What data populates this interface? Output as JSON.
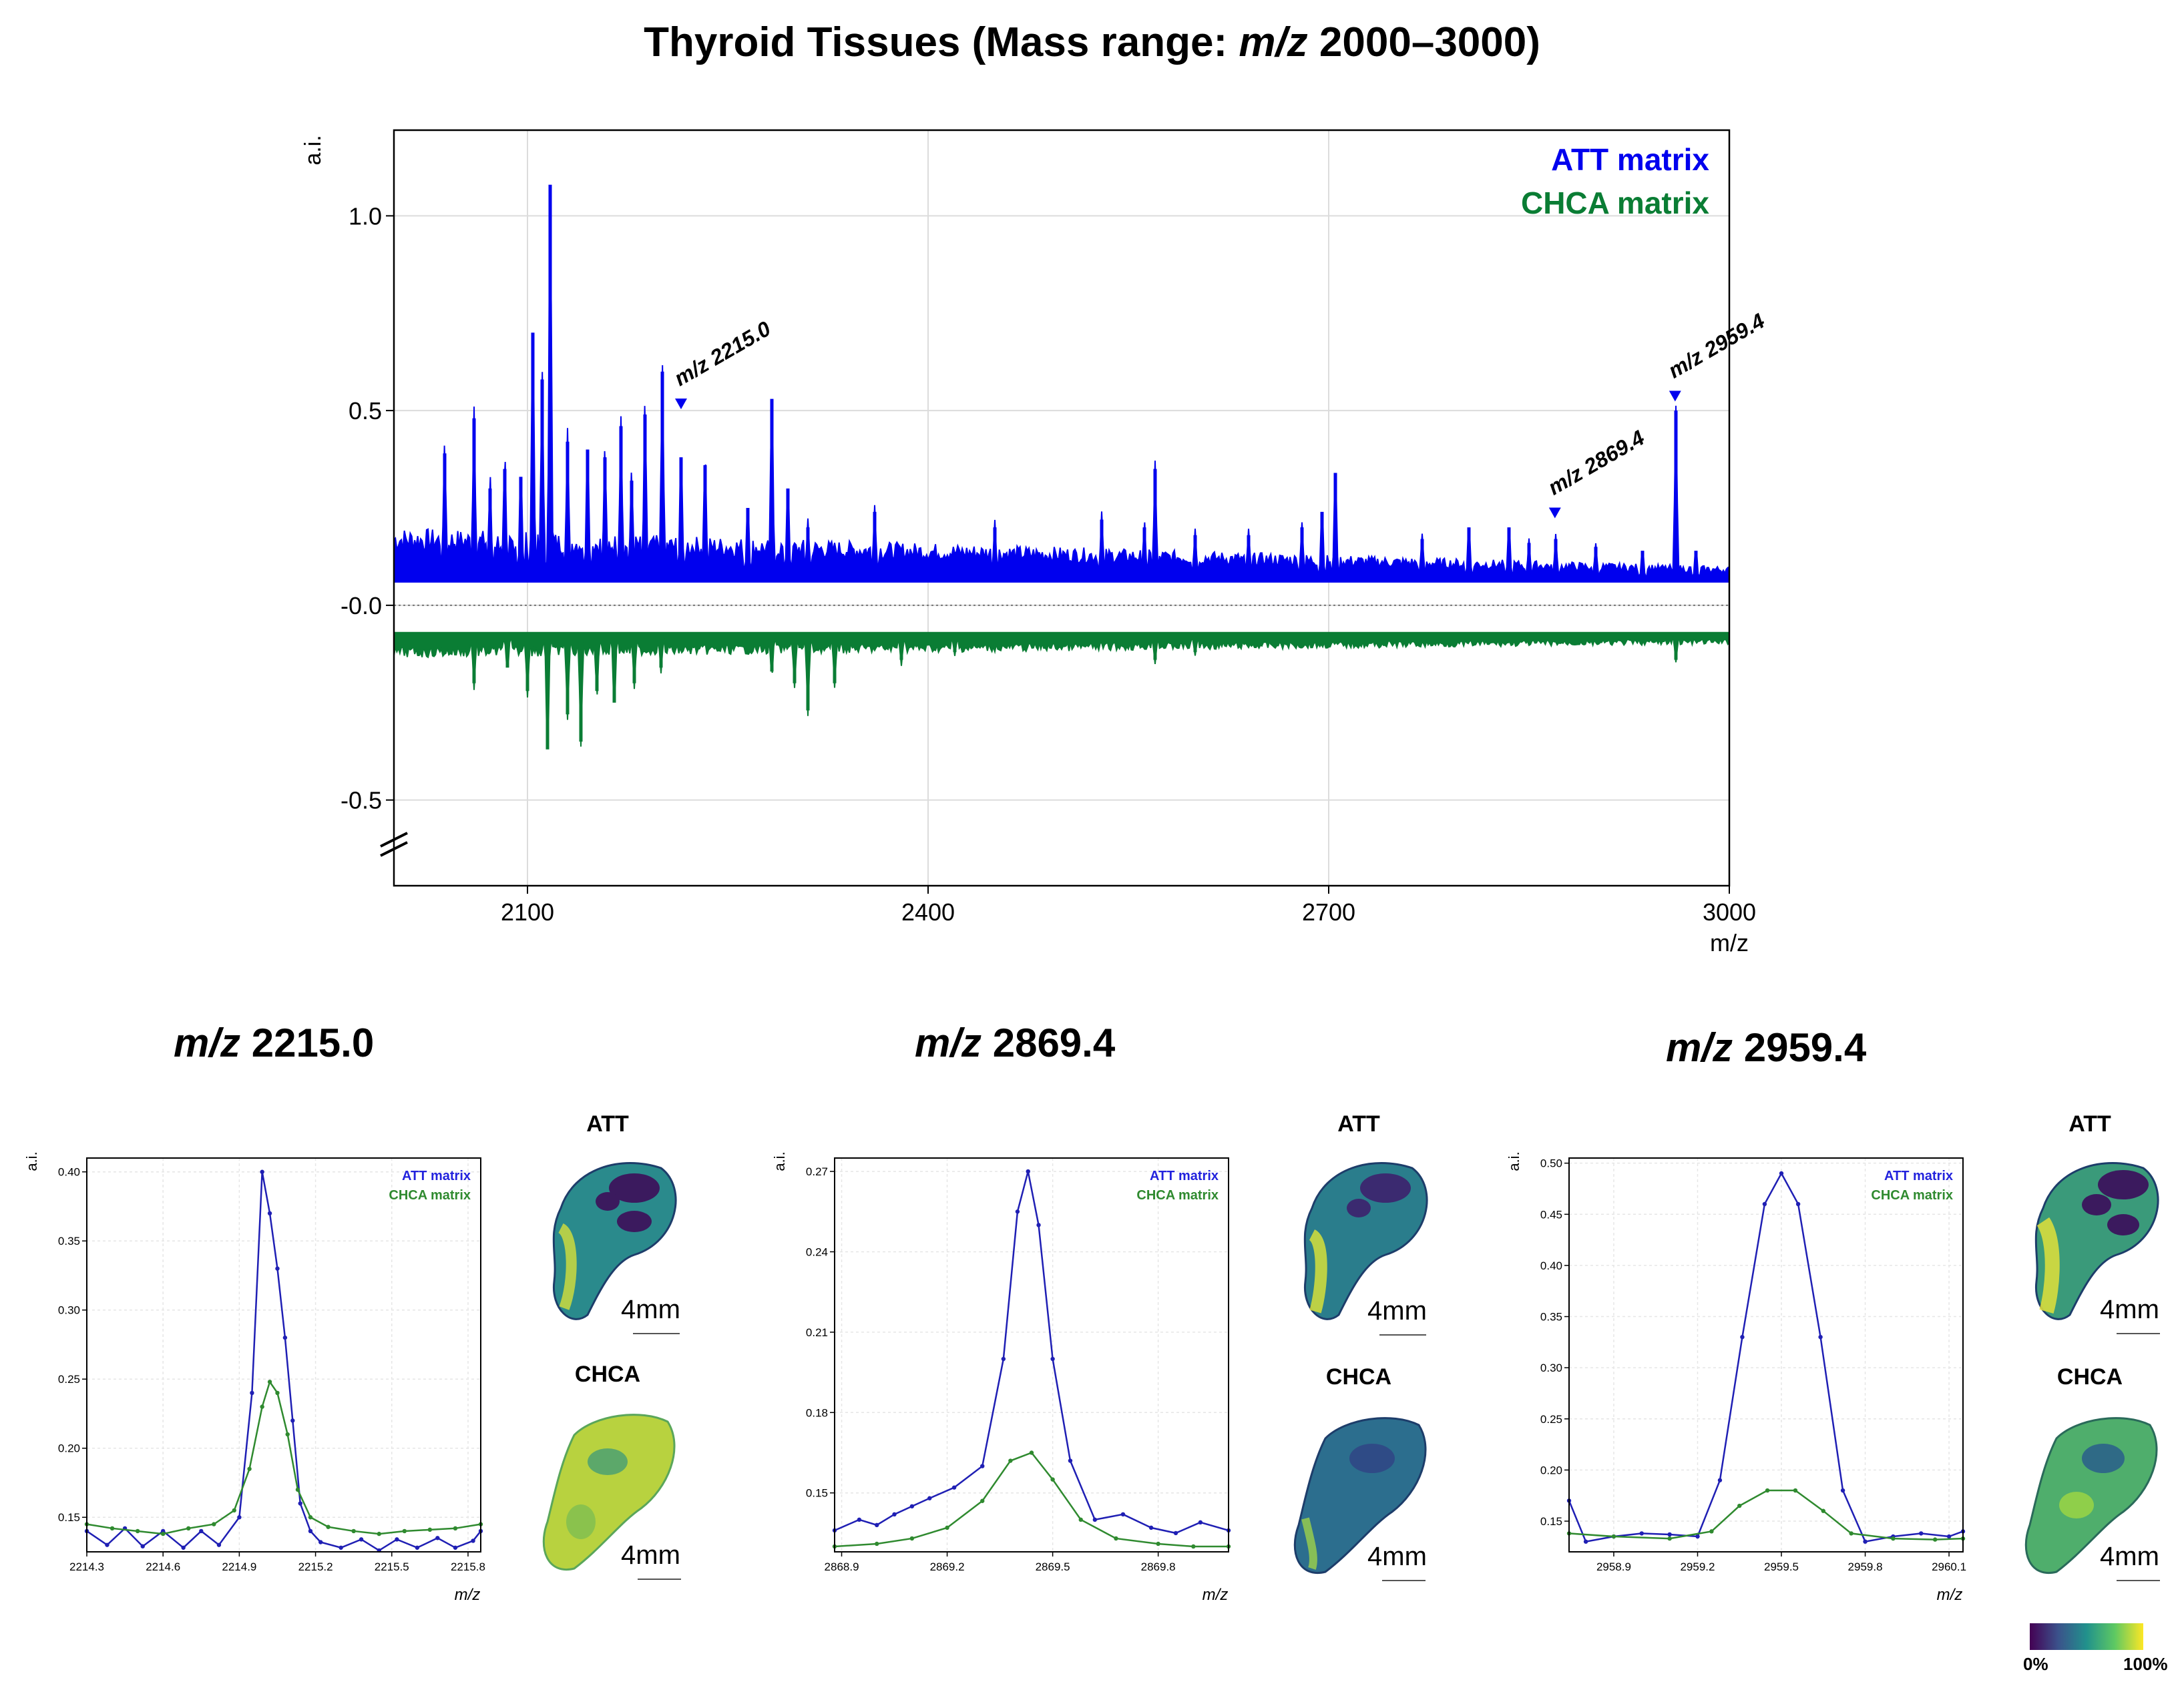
{
  "title_prefix": "Thyroid Tissues (Mass range: ",
  "title_mz": "m/z",
  "title_suffix": " 2000–3000)",
  "chart_data": [
    {
      "type": "line",
      "role": "overview spectrum (mirror plot)",
      "xlabel": "m/z",
      "ylabel": "a.i.",
      "xlim": [
        2000,
        3000
      ],
      "ylim": [
        -0.5,
        1.1
      ],
      "xticks": [
        2100,
        2400,
        2700,
        3000
      ],
      "yticks": [
        1.0,
        0.5,
        -0.0,
        -0.5
      ],
      "ytick_labels": [
        "1.0",
        "0.5",
        "-0.0",
        "-0.5"
      ],
      "grid": true,
      "legend_position": "top-right",
      "series": [
        {
          "name": "ATT matrix",
          "color": "#0000ee",
          "baseline": 0.06,
          "peaks": [
            [
              2038,
              0.39
            ],
            [
              2060,
              0.48
            ],
            [
              2072,
              0.3
            ],
            [
              2083,
              0.35
            ],
            [
              2095,
              0.33
            ],
            [
              2104,
              0.7
            ],
            [
              2111,
              0.58
            ],
            [
              2117,
              1.08
            ],
            [
              2130,
              0.42
            ],
            [
              2145,
              0.4
            ],
            [
              2158,
              0.38
            ],
            [
              2170,
              0.46
            ],
            [
              2178,
              0.32
            ],
            [
              2188,
              0.49
            ],
            [
              2201,
              0.6
            ],
            [
              2215,
              0.38
            ],
            [
              2233,
              0.36
            ],
            [
              2265,
              0.25
            ],
            [
              2283,
              0.53
            ],
            [
              2295,
              0.3
            ],
            [
              2310,
              0.2
            ],
            [
              2360,
              0.24
            ],
            [
              2450,
              0.2
            ],
            [
              2530,
              0.22
            ],
            [
              2562,
              0.2
            ],
            [
              2570,
              0.35
            ],
            [
              2600,
              0.18
            ],
            [
              2640,
              0.18
            ],
            [
              2680,
              0.2
            ],
            [
              2695,
              0.24
            ],
            [
              2705,
              0.34
            ],
            [
              2770,
              0.17
            ],
            [
              2805,
              0.2
            ],
            [
              2835,
              0.2
            ],
            [
              2850,
              0.16
            ],
            [
              2870,
              0.17
            ],
            [
              2900,
              0.15
            ],
            [
              2935,
              0.14
            ],
            [
              2960,
              0.5
            ],
            [
              2975,
              0.14
            ]
          ]
        },
        {
          "name": "CHCA matrix",
          "color": "#0a7d34",
          "baseline": -0.07,
          "peaks": [
            [
              2060,
              -0.2
            ],
            [
              2085,
              -0.16
            ],
            [
              2100,
              -0.22
            ],
            [
              2115,
              -0.37
            ],
            [
              2130,
              -0.28
            ],
            [
              2140,
              -0.35
            ],
            [
              2152,
              -0.22
            ],
            [
              2165,
              -0.25
            ],
            [
              2180,
              -0.2
            ],
            [
              2200,
              -0.16
            ],
            [
              2283,
              -0.17
            ],
            [
              2300,
              -0.2
            ],
            [
              2310,
              -0.27
            ],
            [
              2330,
              -0.2
            ],
            [
              2380,
              -0.14
            ],
            [
              2420,
              -0.12
            ],
            [
              2570,
              -0.14
            ],
            [
              2600,
              -0.12
            ],
            [
              2960,
              -0.14
            ]
          ]
        }
      ],
      "annotations": [
        {
          "text": "m/z 2215.0",
          "x": 2215.0,
          "y": 0.5
        },
        {
          "text": "m/z 2869.4",
          "x": 2869.4,
          "y": 0.22
        },
        {
          "text": "m/z 2959.4",
          "x": 2959.4,
          "y": 0.52
        }
      ]
    },
    {
      "type": "line",
      "title_mz": "m/z",
      "title_value": " 2215.0",
      "xlabel": "m/z",
      "ylabel": "a.i.",
      "xlim": [
        2214.3,
        2215.85
      ],
      "ylim": [
        0.125,
        0.41
      ],
      "xticks": [
        2214.3,
        2214.6,
        2214.9,
        2215.2,
        2215.5,
        2215.8
      ],
      "yticks": [
        0.15,
        0.2,
        0.25,
        0.3,
        0.35,
        0.4
      ],
      "legend_position": "top-right",
      "series": [
        {
          "name": "ATT matrix",
          "color": "#1f1fb4",
          "x": [
            2214.3,
            2214.38,
            2214.45,
            2214.52,
            2214.6,
            2214.68,
            2214.75,
            2214.82,
            2214.9,
            2214.95,
            2214.99,
            2215.02,
            2215.05,
            2215.08,
            2215.11,
            2215.14,
            2215.18,
            2215.22,
            2215.3,
            2215.38,
            2215.45,
            2215.52,
            2215.6,
            2215.68,
            2215.75,
            2215.82,
            2215.85
          ],
          "y": [
            0.14,
            0.13,
            0.142,
            0.129,
            0.14,
            0.128,
            0.14,
            0.13,
            0.15,
            0.24,
            0.4,
            0.37,
            0.33,
            0.28,
            0.22,
            0.16,
            0.14,
            0.132,
            0.128,
            0.134,
            0.126,
            0.134,
            0.128,
            0.135,
            0.128,
            0.133,
            0.14
          ]
        },
        {
          "name": "CHCA matrix",
          "color": "#2f8a2f",
          "x": [
            2214.3,
            2214.4,
            2214.5,
            2214.6,
            2214.7,
            2214.8,
            2214.88,
            2214.94,
            2214.99,
            2215.02,
            2215.05,
            2215.09,
            2215.13,
            2215.18,
            2215.25,
            2215.35,
            2215.45,
            2215.55,
            2215.65,
            2215.75,
            2215.85
          ],
          "y": [
            0.145,
            0.142,
            0.14,
            0.138,
            0.142,
            0.145,
            0.155,
            0.185,
            0.23,
            0.248,
            0.24,
            0.21,
            0.17,
            0.15,
            0.143,
            0.14,
            0.138,
            0.14,
            0.141,
            0.142,
            0.145
          ]
        }
      ],
      "maps": [
        "ATT",
        "CHCA"
      ],
      "scale_label": "4mm"
    },
    {
      "type": "line",
      "title_mz": "m/z",
      "title_value": " 2869.4",
      "xlabel": "m/z",
      "ylabel": "a.i.",
      "xlim": [
        2868.88,
        2870.0
      ],
      "ylim": [
        0.128,
        0.275
      ],
      "xticks": [
        2868.9,
        2869.2,
        2869.5,
        2869.8
      ],
      "yticks": [
        0.15,
        0.18,
        0.21,
        0.24,
        0.27
      ],
      "legend_position": "top-right",
      "series": [
        {
          "name": "ATT matrix",
          "color": "#1f1fb4",
          "x": [
            2868.88,
            2868.95,
            2869.0,
            2869.05,
            2869.1,
            2869.15,
            2869.22,
            2869.3,
            2869.36,
            2869.4,
            2869.43,
            2869.46,
            2869.5,
            2869.55,
            2869.62,
            2869.7,
            2869.78,
            2869.85,
            2869.92,
            2870.0
          ],
          "y": [
            0.136,
            0.14,
            0.138,
            0.142,
            0.145,
            0.148,
            0.152,
            0.16,
            0.2,
            0.255,
            0.27,
            0.25,
            0.2,
            0.162,
            0.14,
            0.142,
            0.137,
            0.135,
            0.139,
            0.136
          ]
        },
        {
          "name": "CHCA matrix",
          "color": "#2f8a2f",
          "x": [
            2868.88,
            2869.0,
            2869.1,
            2869.2,
            2869.3,
            2869.38,
            2869.44,
            2869.5,
            2869.58,
            2869.68,
            2869.8,
            2869.9,
            2870.0
          ],
          "y": [
            0.13,
            0.131,
            0.133,
            0.137,
            0.147,
            0.162,
            0.165,
            0.155,
            0.14,
            0.133,
            0.131,
            0.13,
            0.13
          ]
        }
      ],
      "maps": [
        "ATT",
        "CHCA"
      ],
      "scale_label": "4mm"
    },
    {
      "type": "line",
      "title_mz": "m/z",
      "title_value": " 2959.4",
      "xlabel": "m/z",
      "ylabel": "a.i.",
      "xlim": [
        2958.74,
        2960.15
      ],
      "ylim": [
        0.12,
        0.505
      ],
      "xticks": [
        2958.9,
        2959.2,
        2959.5,
        2959.8,
        2960.1
      ],
      "yticks": [
        0.15,
        0.2,
        0.25,
        0.3,
        0.35,
        0.4,
        0.45,
        0.5
      ],
      "legend_position": "top-right",
      "series": [
        {
          "name": "ATT matrix",
          "color": "#1f1fb4",
          "x": [
            2958.74,
            2958.8,
            2958.9,
            2959.0,
            2959.1,
            2959.2,
            2959.28,
            2959.36,
            2959.44,
            2959.5,
            2959.56,
            2959.64,
            2959.72,
            2959.8,
            2959.9,
            2960.0,
            2960.1,
            2960.15
          ],
          "y": [
            0.17,
            0.13,
            0.135,
            0.138,
            0.137,
            0.135,
            0.19,
            0.33,
            0.46,
            0.49,
            0.46,
            0.33,
            0.18,
            0.13,
            0.135,
            0.138,
            0.135,
            0.14
          ]
        },
        {
          "name": "CHCA matrix",
          "color": "#2f8a2f",
          "x": [
            2958.74,
            2958.9,
            2959.1,
            2959.25,
            2959.35,
            2959.45,
            2959.55,
            2959.65,
            2959.75,
            2959.9,
            2960.05,
            2960.15
          ],
          "y": [
            0.138,
            0.135,
            0.133,
            0.14,
            0.165,
            0.18,
            0.18,
            0.16,
            0.138,
            0.133,
            0.132,
            0.133
          ]
        }
      ],
      "maps": [
        "ATT",
        "CHCA"
      ],
      "scale_label": "4mm"
    }
  ],
  "colorbar": {
    "min_label": "0%",
    "max_label": "100%",
    "colors": [
      "#440154",
      "#3b528b",
      "#21918c",
      "#5ec962",
      "#fde725"
    ]
  }
}
